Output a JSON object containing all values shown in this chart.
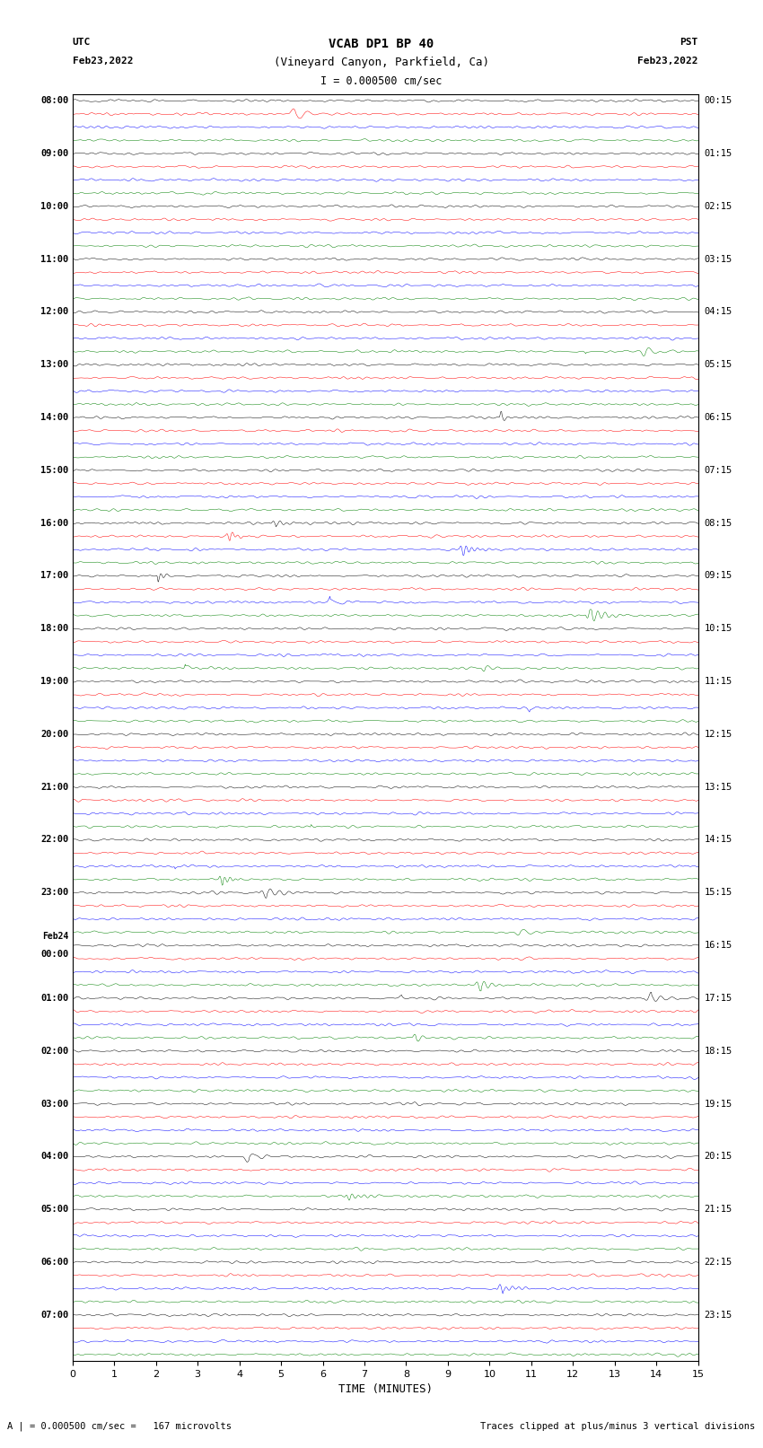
{
  "title_line1": "VCAB DP1 BP 40",
  "title_line2": "(Vineyard Canyon, Parkfield, Ca)",
  "scale_label": "I = 0.000500 cm/sec",
  "utc_label_line1": "UTC",
  "utc_label_line2": "Feb23,2022",
  "pst_label_line1": "PST",
  "pst_label_line2": "Feb23,2022",
  "bottom_label": "A | = 0.000500 cm/sec =   167 microvolts",
  "bottom_label2": "Traces clipped at plus/minus 3 vertical divisions",
  "xlabel": "TIME (MINUTES)",
  "background_color": "#ffffff",
  "trace_colors": [
    "#000000",
    "#ff0000",
    "#0000ff",
    "#008000"
  ],
  "time_minutes": 15,
  "left_labels_utc": [
    "08:00",
    "09:00",
    "10:00",
    "11:00",
    "12:00",
    "13:00",
    "14:00",
    "15:00",
    "16:00",
    "17:00",
    "18:00",
    "19:00",
    "20:00",
    "21:00",
    "22:00",
    "23:00",
    "Feb24\n00:00",
    "01:00",
    "02:00",
    "03:00",
    "04:00",
    "05:00",
    "06:00",
    "07:00"
  ],
  "right_labels_pst": [
    "00:15",
    "01:15",
    "02:15",
    "03:15",
    "04:15",
    "05:15",
    "06:15",
    "07:15",
    "08:15",
    "09:15",
    "10:15",
    "11:15",
    "12:15",
    "13:15",
    "14:15",
    "15:15",
    "16:15",
    "17:15",
    "18:15",
    "19:15",
    "20:15",
    "21:15",
    "22:15",
    "23:15"
  ],
  "num_hours": 24,
  "traces_per_hour": 4
}
